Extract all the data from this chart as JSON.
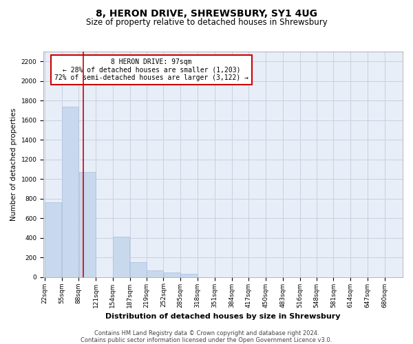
{
  "title": "8, HERON DRIVE, SHREWSBURY, SY1 4UG",
  "subtitle": "Size of property relative to detached houses in Shrewsbury",
  "xlabel": "Distribution of detached houses by size in Shrewsbury",
  "ylabel": "Number of detached properties",
  "footer_line1": "Contains HM Land Registry data © Crown copyright and database right 2024.",
  "footer_line2": "Contains public sector information licensed under the Open Government Licence v3.0.",
  "annotation_line1": "8 HERON DRIVE: 97sqm",
  "annotation_line2": "← 28% of detached houses are smaller (1,203)",
  "annotation_line3": "72% of semi-detached houses are larger (3,122) →",
  "property_size": 97,
  "bins": [
    22,
    55,
    88,
    121,
    154,
    187,
    219,
    252,
    285,
    318,
    351,
    384,
    417,
    450,
    483,
    516,
    548,
    581,
    614,
    647,
    680
  ],
  "bar_heights": [
    760,
    1740,
    1070,
    0,
    415,
    150,
    65,
    50,
    35,
    0,
    0,
    0,
    0,
    0,
    0,
    0,
    0,
    0,
    0,
    0
  ],
  "bar_color": "#c8d8ed",
  "bar_edge_color": "#a8c0dc",
  "vline_color": "#cc0000",
  "annotation_box_edgecolor": "#cc0000",
  "plot_bg_color": "#e8eef8",
  "fig_bg_color": "#ffffff",
  "grid_color": "#c8d0e0",
  "ylim": [
    0,
    2300
  ],
  "yticks": [
    0,
    200,
    400,
    600,
    800,
    1000,
    1200,
    1400,
    1600,
    1800,
    2000,
    2200
  ],
  "title_fontsize": 10,
  "subtitle_fontsize": 8.5,
  "ylabel_fontsize": 7.5,
  "xlabel_fontsize": 8,
  "tick_fontsize": 6.5,
  "annotation_fontsize": 7,
  "footer_fontsize": 6
}
